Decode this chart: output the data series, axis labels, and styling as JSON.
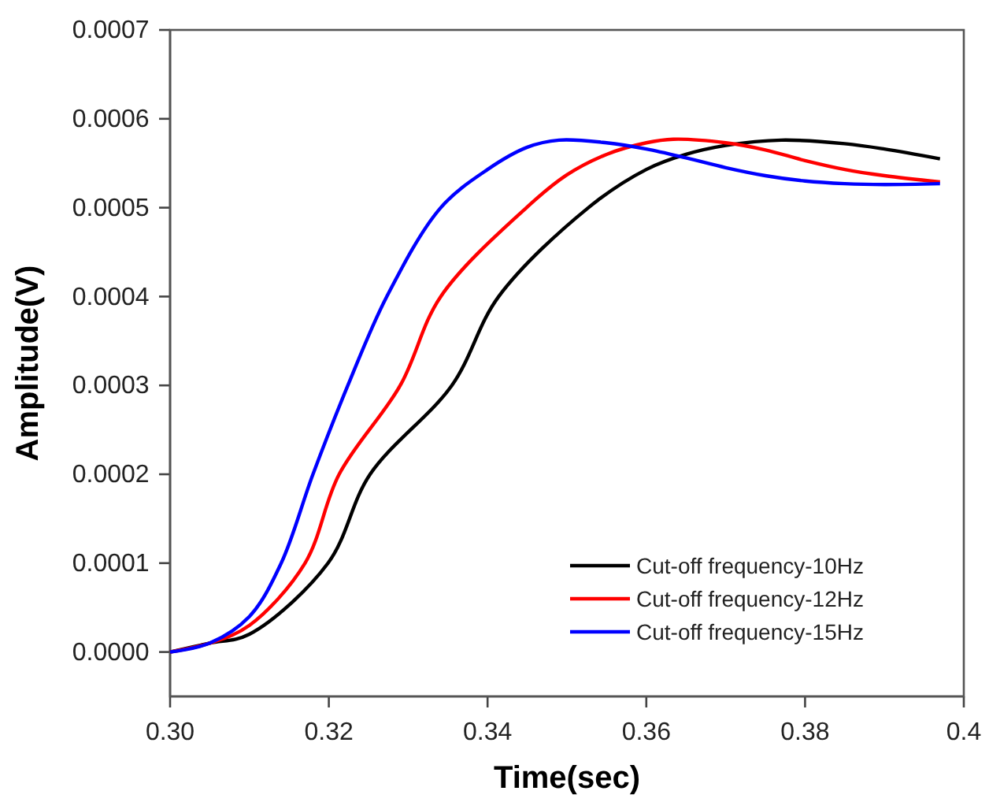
{
  "chart_data": {
    "type": "line",
    "xlabel": "Time(sec)",
    "ylabel": "Amplitude(V)",
    "xlim": [
      0.3,
      0.4
    ],
    "xticks": [
      {
        "value": 0.3,
        "label": "0.30"
      },
      0.32,
      0.34,
      0.36,
      0.38,
      0.4
    ],
    "ylim": [
      -5e-05,
      0.0007
    ],
    "yticks": [
      {
        "value": 0,
        "label": "0.0000"
      },
      {
        "value": 0.0001,
        "label": "0.0001"
      },
      {
        "value": 0.0002,
        "label": "0.0002"
      },
      {
        "value": 0.0003,
        "label": "0.0003"
      },
      {
        "value": 0.0004,
        "label": "0.0004"
      },
      {
        "value": 0.0005,
        "label": "0.0005"
      },
      {
        "value": 0.0006,
        "label": "0.0006"
      },
      {
        "value": 0.0007,
        "label": "0.0007"
      }
    ],
    "grid": false,
    "legend": "bottom right",
    "marker": "none",
    "line_style": "solid",
    "series": [
      {
        "name": "Cut-off frequency-10Hz",
        "color": "#000000",
        "x": [
          0.3,
          0.305,
          0.31,
          0.3199,
          0.3252,
          0.3355,
          0.3414,
          0.3527,
          0.36,
          0.365,
          0.37,
          0.377,
          0.385,
          0.39,
          0.397
        ],
        "values": [
          0,
          1e-05,
          2e-05,
          0.0001,
          0.0002,
          0.0003,
          0.0004,
          0.0005,
          0.000543,
          0.00056,
          0.00057,
          0.000576,
          0.000572,
          0.000566,
          0.000555
        ]
      },
      {
        "name": "Cut-off frequency-12Hz",
        "color": "#ff0000",
        "x": [
          0.3,
          0.305,
          0.31,
          0.317,
          0.3213,
          0.329,
          0.3341,
          0.3449,
          0.35,
          0.355,
          0.36,
          0.3634,
          0.37,
          0.375,
          0.38,
          0.385,
          0.39,
          0.397
        ],
        "values": [
          0,
          1e-05,
          3e-05,
          0.0001,
          0.0002,
          0.0003,
          0.0004,
          0.0005,
          0.000537,
          0.00056,
          0.000573,
          0.000577,
          0.000573,
          0.000565,
          0.000553,
          0.000543,
          0.000536,
          0.000529
        ]
      },
      {
        "name": "Cut-off frequency-15Hz",
        "color": "#0000ff",
        "x": [
          0.3,
          0.305,
          0.31,
          0.314,
          0.318,
          0.3224,
          0.3273,
          0.3341,
          0.34,
          0.345,
          0.349,
          0.355,
          0.36,
          0.365,
          0.37,
          0.375,
          0.38,
          0.385,
          0.39,
          0.397
        ],
        "values": [
          0,
          1e-05,
          4e-05,
          0.0001,
          0.0002,
          0.0003,
          0.0004,
          0.0005,
          0.000543,
          0.000568,
          0.000576,
          0.000573,
          0.000566,
          0.000556,
          0.000545,
          0.000536,
          0.00053,
          0.000527,
          0.000526,
          0.000527
        ]
      }
    ]
  }
}
